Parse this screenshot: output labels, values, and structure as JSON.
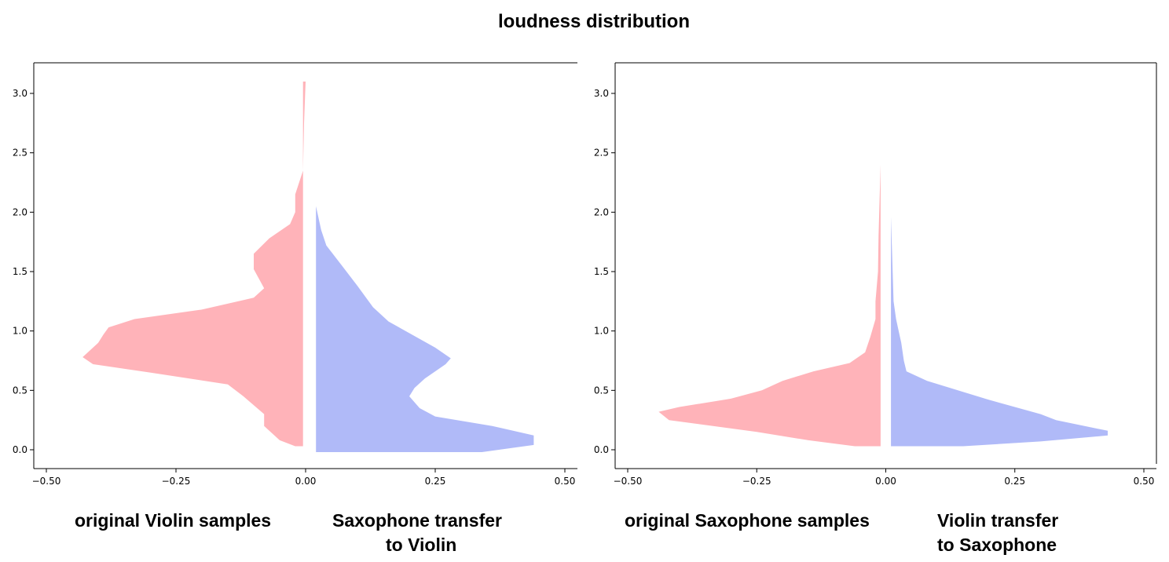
{
  "title": "loudness distribution",
  "chart_data": [
    {
      "type": "violin",
      "xlim": [
        -0.5,
        0.5
      ],
      "ylim": [
        -0.15,
        3.25
      ],
      "x_ticks": [
        -0.5,
        -0.25,
        0.0,
        0.25,
        0.5
      ],
      "x_tick_labels": [
        "−0.50",
        "−0.25",
        "0.00",
        "0.25",
        "0.50"
      ],
      "y_ticks": [
        0.0,
        0.5,
        1.0,
        1.5,
        2.0,
        2.5,
        3.0
      ],
      "y_tick_labels": [
        "0.0",
        "0.5",
        "1.0",
        "1.5",
        "2.0",
        "2.5",
        "3.0"
      ],
      "left_series": {
        "name": "original Violin samples",
        "color": "#ff9aa2",
        "base_x": -0.005,
        "profile": [
          [
            -0.02,
            0.03
          ],
          [
            -0.05,
            0.08
          ],
          [
            -0.08,
            0.2
          ],
          [
            -0.08,
            0.3
          ],
          [
            -0.12,
            0.45
          ],
          [
            -0.15,
            0.55
          ],
          [
            -0.3,
            0.65
          ],
          [
            -0.41,
            0.72
          ],
          [
            -0.43,
            0.78
          ],
          [
            -0.4,
            0.9
          ],
          [
            -0.39,
            0.97
          ],
          [
            -0.38,
            1.03
          ],
          [
            -0.33,
            1.1
          ],
          [
            -0.2,
            1.18
          ],
          [
            -0.1,
            1.28
          ],
          [
            -0.08,
            1.36
          ],
          [
            -0.1,
            1.52
          ],
          [
            -0.1,
            1.65
          ],
          [
            -0.07,
            1.78
          ],
          [
            -0.03,
            1.9
          ],
          [
            -0.02,
            2.0
          ],
          [
            -0.02,
            2.15
          ],
          [
            -0.005,
            2.35
          ],
          [
            -0.003,
            2.75
          ],
          [
            0.0,
            3.1
          ]
        ]
      },
      "right_series": {
        "name": "Saxophone transfer to Violin",
        "color": "#8f9cf5",
        "base_x": 0.02,
        "profile": [
          [
            0.34,
            -0.02
          ],
          [
            0.44,
            0.04
          ],
          [
            0.44,
            0.12
          ],
          [
            0.36,
            0.2
          ],
          [
            0.25,
            0.28
          ],
          [
            0.22,
            0.35
          ],
          [
            0.2,
            0.45
          ],
          [
            0.21,
            0.52
          ],
          [
            0.23,
            0.6
          ],
          [
            0.27,
            0.72
          ],
          [
            0.28,
            0.77
          ],
          [
            0.25,
            0.86
          ],
          [
            0.16,
            1.08
          ],
          [
            0.13,
            1.2
          ],
          [
            0.1,
            1.38
          ],
          [
            0.07,
            1.55
          ],
          [
            0.04,
            1.72
          ],
          [
            0.03,
            1.85
          ],
          [
            0.02,
            2.05
          ],
          [
            0.02,
            3.1
          ]
        ]
      },
      "caption_left": "original Violin samples",
      "caption_right_line1": "Saxophone transfer",
      "caption_right_line2": "to Violin"
    },
    {
      "type": "violin",
      "xlim": [
        -0.5,
        0.5
      ],
      "ylim": [
        -0.15,
        3.25
      ],
      "x_ticks": [
        -0.5,
        -0.25,
        0.0,
        0.25,
        0.5
      ],
      "x_tick_labels": [
        "−0.50",
        "−0.25",
        "0.00",
        "0.25",
        "0.50"
      ],
      "y_ticks": [
        0.0,
        0.5,
        1.0,
        1.5,
        2.0,
        2.5,
        3.0
      ],
      "y_tick_labels": [
        "0.0",
        "0.5",
        "1.0",
        "1.5",
        "2.0",
        "2.5",
        "3.0"
      ],
      "left_series": {
        "name": "original Saxophone samples",
        "color": "#ff9aa2",
        "base_x": -0.01,
        "profile": [
          [
            -0.06,
            0.03
          ],
          [
            -0.15,
            0.08
          ],
          [
            -0.25,
            0.15
          ],
          [
            -0.42,
            0.25
          ],
          [
            -0.44,
            0.32
          ],
          [
            -0.4,
            0.36
          ],
          [
            -0.3,
            0.43
          ],
          [
            -0.24,
            0.5
          ],
          [
            -0.2,
            0.58
          ],
          [
            -0.14,
            0.66
          ],
          [
            -0.07,
            0.73
          ],
          [
            -0.04,
            0.82
          ],
          [
            -0.03,
            0.95
          ],
          [
            -0.02,
            1.1
          ],
          [
            -0.02,
            1.25
          ],
          [
            -0.015,
            1.5
          ],
          [
            -0.014,
            1.8
          ],
          [
            -0.012,
            2.1
          ],
          [
            -0.01,
            2.4
          ]
        ]
      },
      "right_series": {
        "name": "Violin transfer to Saxophone",
        "color": "#8f9cf5",
        "base_x": 0.01,
        "profile": [
          [
            0.15,
            0.03
          ],
          [
            0.3,
            0.07
          ],
          [
            0.43,
            0.12
          ],
          [
            0.43,
            0.16
          ],
          [
            0.33,
            0.25
          ],
          [
            0.3,
            0.3
          ],
          [
            0.2,
            0.42
          ],
          [
            0.08,
            0.58
          ],
          [
            0.04,
            0.66
          ],
          [
            0.035,
            0.75
          ],
          [
            0.03,
            0.9
          ],
          [
            0.025,
            1.0
          ],
          [
            0.02,
            1.1
          ],
          [
            0.015,
            1.25
          ],
          [
            0.01,
            1.96
          ]
        ]
      },
      "caption_left": "original Saxophone samples",
      "caption_right_line1": "Violin transfer",
      "caption_right_line2": "to Saxophone"
    }
  ]
}
